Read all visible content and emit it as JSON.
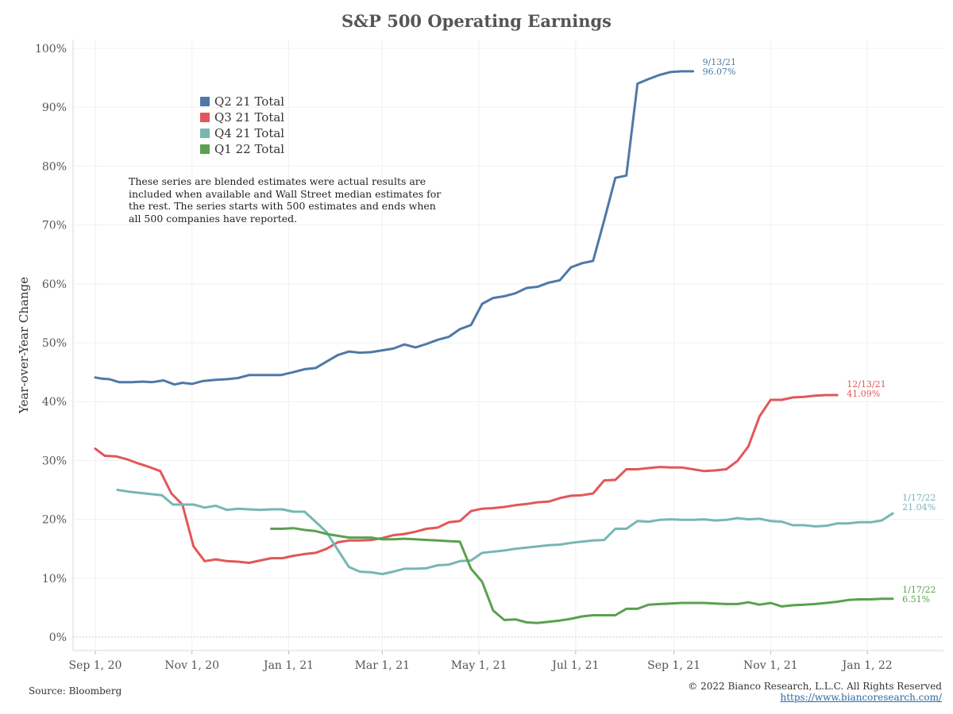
{
  "chart_data": {
    "type": "line",
    "title": "S&P 500 Operating Earnings",
    "ylabel": "Year-over-Year Change",
    "xlabel": "",
    "ylim": [
      0,
      100
    ],
    "xlim": [
      "2020-08-18",
      "2022-02-18"
    ],
    "yticks": [
      0,
      10,
      20,
      30,
      40,
      50,
      60,
      70,
      80,
      90,
      100
    ],
    "ytick_labels": [
      "0%",
      "10%",
      "20%",
      "30%",
      "40%",
      "50%",
      "60%",
      "70%",
      "80%",
      "90%",
      "100%"
    ],
    "xticks": [
      "2020-09-01",
      "2020-11-01",
      "2021-01-01",
      "2021-03-01",
      "2021-05-01",
      "2021-07-01",
      "2021-09-01",
      "2021-11-01",
      "2022-01-01"
    ],
    "xtick_labels": [
      "Sep 1, 20",
      "Nov 1, 20",
      "Jan 1, 21",
      "Mar 1, 21",
      "May 1, 21",
      "Jul 1, 21",
      "Sep 1, 21",
      "Nov 1, 21",
      "Jan 1, 22"
    ],
    "grid": true,
    "legend_position": "top-left",
    "annotation": "These series are blended estimates were actual results are included when available and Wall Street median estimates for the rest. The series starts with 500 estimates and ends when all 500 companies have reported.",
    "series": [
      {
        "name": "Q2 21 Total",
        "color": "#4e79a7",
        "end_label": [
          "9/13/21",
          "96.07%"
        ],
        "points": [
          [
            "2020-09-01",
            44.1
          ],
          [
            "2020-09-05",
            43.9
          ],
          [
            "2020-09-10",
            43.8
          ],
          [
            "2020-09-16",
            43.3
          ],
          [
            "2020-09-24",
            43.3
          ],
          [
            "2020-10-01",
            43.4
          ],
          [
            "2020-10-07",
            43.3
          ],
          [
            "2020-10-14",
            43.6
          ],
          [
            "2020-10-21",
            42.9
          ],
          [
            "2020-10-26",
            43.2
          ],
          [
            "2020-11-01",
            43.0
          ],
          [
            "2020-11-08",
            43.5
          ],
          [
            "2020-11-16",
            43.7
          ],
          [
            "2020-11-23",
            43.8
          ],
          [
            "2020-11-30",
            44.0
          ],
          [
            "2020-12-07",
            44.5
          ],
          [
            "2020-12-16",
            44.5
          ],
          [
            "2020-12-27",
            44.5
          ],
          [
            "2021-01-04",
            45.0
          ],
          [
            "2021-01-11",
            45.5
          ],
          [
            "2021-01-18",
            45.7
          ],
          [
            "2021-01-25",
            46.8
          ],
          [
            "2021-02-01",
            47.9
          ],
          [
            "2021-02-08",
            48.5
          ],
          [
            "2021-02-15",
            48.3
          ],
          [
            "2021-02-22",
            48.4
          ],
          [
            "2021-03-01",
            48.7
          ],
          [
            "2021-03-08",
            49.0
          ],
          [
            "2021-03-15",
            49.7
          ],
          [
            "2021-03-22",
            49.2
          ],
          [
            "2021-03-29",
            49.8
          ],
          [
            "2021-04-05",
            50.5
          ],
          [
            "2021-04-12",
            51.0
          ],
          [
            "2021-04-19",
            52.3
          ],
          [
            "2021-04-26",
            53.0
          ],
          [
            "2021-05-03",
            56.6
          ],
          [
            "2021-05-10",
            57.6
          ],
          [
            "2021-05-17",
            57.9
          ],
          [
            "2021-05-24",
            58.4
          ],
          [
            "2021-05-31",
            59.3
          ],
          [
            "2021-06-07",
            59.5
          ],
          [
            "2021-06-14",
            60.2
          ],
          [
            "2021-06-21",
            60.6
          ],
          [
            "2021-06-28",
            62.8
          ],
          [
            "2021-07-05",
            63.5
          ],
          [
            "2021-07-12",
            63.9
          ],
          [
            "2021-07-19",
            70.8
          ],
          [
            "2021-07-26",
            78.0
          ],
          [
            "2021-08-02",
            78.4
          ],
          [
            "2021-08-09",
            94.0
          ],
          [
            "2021-08-16",
            94.8
          ],
          [
            "2021-08-23",
            95.5
          ],
          [
            "2021-08-30",
            96.0
          ],
          [
            "2021-09-06",
            96.1
          ],
          [
            "2021-09-13",
            96.1
          ]
        ]
      },
      {
        "name": "Q3 21 Total",
        "color": "#e15759",
        "end_label": [
          "12/13/21",
          "41.09%"
        ],
        "points": [
          [
            "2020-09-01",
            32.0
          ],
          [
            "2020-09-07",
            30.8
          ],
          [
            "2020-09-14",
            30.7
          ],
          [
            "2020-09-21",
            30.2
          ],
          [
            "2020-09-28",
            29.5
          ],
          [
            "2020-10-05",
            28.9
          ],
          [
            "2020-10-12",
            28.2
          ],
          [
            "2020-10-19",
            24.4
          ],
          [
            "2020-10-26",
            22.5
          ],
          [
            "2020-11-02",
            15.4
          ],
          [
            "2020-11-09",
            12.9
          ],
          [
            "2020-11-16",
            13.2
          ],
          [
            "2020-11-23",
            12.9
          ],
          [
            "2020-11-30",
            12.8
          ],
          [
            "2020-12-07",
            12.6
          ],
          [
            "2020-12-14",
            13.0
          ],
          [
            "2020-12-21",
            13.4
          ],
          [
            "2020-12-28",
            13.4
          ],
          [
            "2021-01-04",
            13.8
          ],
          [
            "2021-01-11",
            14.1
          ],
          [
            "2021-01-18",
            14.3
          ],
          [
            "2021-01-25",
            15.0
          ],
          [
            "2021-02-01",
            16.1
          ],
          [
            "2021-02-08",
            16.4
          ],
          [
            "2021-02-15",
            16.4
          ],
          [
            "2021-02-22",
            16.5
          ],
          [
            "2021-03-01",
            16.8
          ],
          [
            "2021-03-08",
            17.3
          ],
          [
            "2021-03-15",
            17.5
          ],
          [
            "2021-03-22",
            17.9
          ],
          [
            "2021-03-29",
            18.4
          ],
          [
            "2021-04-05",
            18.6
          ],
          [
            "2021-04-12",
            19.5
          ],
          [
            "2021-04-19",
            19.7
          ],
          [
            "2021-04-26",
            21.4
          ],
          [
            "2021-05-03",
            21.8
          ],
          [
            "2021-05-10",
            21.9
          ],
          [
            "2021-05-17",
            22.1
          ],
          [
            "2021-05-24",
            22.4
          ],
          [
            "2021-05-31",
            22.6
          ],
          [
            "2021-06-07",
            22.9
          ],
          [
            "2021-06-14",
            23.0
          ],
          [
            "2021-06-21",
            23.6
          ],
          [
            "2021-06-28",
            24.0
          ],
          [
            "2021-07-05",
            24.1
          ],
          [
            "2021-07-12",
            24.4
          ],
          [
            "2021-07-19",
            26.6
          ],
          [
            "2021-07-26",
            26.7
          ],
          [
            "2021-08-02",
            28.5
          ],
          [
            "2021-08-09",
            28.5
          ],
          [
            "2021-08-16",
            28.7
          ],
          [
            "2021-08-23",
            28.9
          ],
          [
            "2021-08-30",
            28.8
          ],
          [
            "2021-09-06",
            28.8
          ],
          [
            "2021-09-13",
            28.5
          ],
          [
            "2021-09-20",
            28.2
          ],
          [
            "2021-09-27",
            28.3
          ],
          [
            "2021-10-04",
            28.5
          ],
          [
            "2021-10-11",
            29.9
          ],
          [
            "2021-10-18",
            32.4
          ],
          [
            "2021-10-25",
            37.5
          ],
          [
            "2021-11-01",
            40.3
          ],
          [
            "2021-11-08",
            40.3
          ],
          [
            "2021-11-15",
            40.7
          ],
          [
            "2021-11-22",
            40.8
          ],
          [
            "2021-11-29",
            41.0
          ],
          [
            "2021-12-06",
            41.1
          ],
          [
            "2021-12-13",
            41.1
          ]
        ]
      },
      {
        "name": "Q4 21 Total",
        "color": "#76b7b2",
        "end_label": [
          "1/17/22",
          "21.04%"
        ],
        "points": [
          [
            "2020-09-15",
            25.0
          ],
          [
            "2020-09-22",
            24.7
          ],
          [
            "2020-09-29",
            24.5
          ],
          [
            "2020-10-06",
            24.3
          ],
          [
            "2020-10-13",
            24.1
          ],
          [
            "2020-10-20",
            22.5
          ],
          [
            "2020-10-27",
            22.5
          ],
          [
            "2020-11-02",
            22.5
          ],
          [
            "2020-11-09",
            22.0
          ],
          [
            "2020-11-16",
            22.3
          ],
          [
            "2020-11-23",
            21.6
          ],
          [
            "2020-11-30",
            21.8
          ],
          [
            "2020-12-07",
            21.7
          ],
          [
            "2020-12-14",
            21.6
          ],
          [
            "2020-12-21",
            21.7
          ],
          [
            "2020-12-28",
            21.7
          ],
          [
            "2021-01-04",
            21.3
          ],
          [
            "2021-01-11",
            21.3
          ],
          [
            "2021-01-18",
            19.6
          ],
          [
            "2021-01-25",
            17.8
          ],
          [
            "2021-02-01",
            14.8
          ],
          [
            "2021-02-08",
            11.9
          ],
          [
            "2021-02-15",
            11.1
          ],
          [
            "2021-02-22",
            11.0
          ],
          [
            "2021-03-01",
            10.7
          ],
          [
            "2021-03-08",
            11.1
          ],
          [
            "2021-03-15",
            11.6
          ],
          [
            "2021-03-22",
            11.6
          ],
          [
            "2021-03-29",
            11.7
          ],
          [
            "2021-04-05",
            12.2
          ],
          [
            "2021-04-12",
            12.3
          ],
          [
            "2021-04-19",
            12.9
          ],
          [
            "2021-04-26",
            13.0
          ],
          [
            "2021-05-03",
            14.3
          ],
          [
            "2021-05-10",
            14.5
          ],
          [
            "2021-05-17",
            14.7
          ],
          [
            "2021-05-24",
            15.0
          ],
          [
            "2021-05-31",
            15.2
          ],
          [
            "2021-06-07",
            15.4
          ],
          [
            "2021-06-14",
            15.6
          ],
          [
            "2021-06-21",
            15.7
          ],
          [
            "2021-06-28",
            16.0
          ],
          [
            "2021-07-05",
            16.2
          ],
          [
            "2021-07-12",
            16.4
          ],
          [
            "2021-07-19",
            16.5
          ],
          [
            "2021-07-26",
            18.4
          ],
          [
            "2021-08-02",
            18.4
          ],
          [
            "2021-08-09",
            19.7
          ],
          [
            "2021-08-16",
            19.6
          ],
          [
            "2021-08-23",
            19.9
          ],
          [
            "2021-08-30",
            20.0
          ],
          [
            "2021-09-06",
            19.9
          ],
          [
            "2021-09-13",
            19.9
          ],
          [
            "2021-09-20",
            20.0
          ],
          [
            "2021-09-27",
            19.8
          ],
          [
            "2021-10-04",
            19.9
          ],
          [
            "2021-10-11",
            20.2
          ],
          [
            "2021-10-18",
            20.0
          ],
          [
            "2021-10-25",
            20.1
          ],
          [
            "2021-11-01",
            19.7
          ],
          [
            "2021-11-08",
            19.6
          ],
          [
            "2021-11-15",
            19.0
          ],
          [
            "2021-11-22",
            19.0
          ],
          [
            "2021-11-29",
            18.8
          ],
          [
            "2021-12-06",
            18.9
          ],
          [
            "2021-12-13",
            19.3
          ],
          [
            "2021-12-20",
            19.3
          ],
          [
            "2021-12-27",
            19.5
          ],
          [
            "2022-01-03",
            19.5
          ],
          [
            "2022-01-10",
            19.8
          ],
          [
            "2022-01-17",
            21.0
          ]
        ]
      },
      {
        "name": "Q1 22 Total",
        "color": "#59a14f",
        "end_label": [
          "1/17/22",
          "6.51%"
        ],
        "points": [
          [
            "2020-12-21",
            18.4
          ],
          [
            "2020-12-28",
            18.4
          ],
          [
            "2021-01-04",
            18.5
          ],
          [
            "2021-01-11",
            18.2
          ],
          [
            "2021-01-18",
            18.0
          ],
          [
            "2021-01-25",
            17.5
          ],
          [
            "2021-02-01",
            17.2
          ],
          [
            "2021-02-08",
            16.9
          ],
          [
            "2021-02-15",
            16.9
          ],
          [
            "2021-02-22",
            16.9
          ],
          [
            "2021-03-01",
            16.6
          ],
          [
            "2021-03-08",
            16.6
          ],
          [
            "2021-03-15",
            16.7
          ],
          [
            "2021-03-22",
            16.6
          ],
          [
            "2021-03-29",
            16.5
          ],
          [
            "2021-04-05",
            16.4
          ],
          [
            "2021-04-12",
            16.3
          ],
          [
            "2021-04-19",
            16.2
          ],
          [
            "2021-04-26",
            11.6
          ],
          [
            "2021-05-03",
            9.4
          ],
          [
            "2021-05-10",
            4.5
          ],
          [
            "2021-05-17",
            2.9
          ],
          [
            "2021-05-24",
            3.0
          ],
          [
            "2021-05-31",
            2.5
          ],
          [
            "2021-06-07",
            2.4
          ],
          [
            "2021-06-14",
            2.6
          ],
          [
            "2021-06-21",
            2.8
          ],
          [
            "2021-06-28",
            3.1
          ],
          [
            "2021-07-05",
            3.5
          ],
          [
            "2021-07-12",
            3.7
          ],
          [
            "2021-07-19",
            3.7
          ],
          [
            "2021-07-26",
            3.7
          ],
          [
            "2021-08-02",
            4.8
          ],
          [
            "2021-08-09",
            4.8
          ],
          [
            "2021-08-16",
            5.5
          ],
          [
            "2021-08-23",
            5.6
          ],
          [
            "2021-08-30",
            5.7
          ],
          [
            "2021-09-06",
            5.8
          ],
          [
            "2021-09-13",
            5.8
          ],
          [
            "2021-09-20",
            5.8
          ],
          [
            "2021-09-27",
            5.7
          ],
          [
            "2021-10-04",
            5.6
          ],
          [
            "2021-10-11",
            5.6
          ],
          [
            "2021-10-18",
            5.9
          ],
          [
            "2021-10-25",
            5.5
          ],
          [
            "2021-11-01",
            5.8
          ],
          [
            "2021-11-08",
            5.2
          ],
          [
            "2021-11-15",
            5.4
          ],
          [
            "2021-11-22",
            5.5
          ],
          [
            "2021-11-29",
            5.6
          ],
          [
            "2021-12-06",
            5.8
          ],
          [
            "2021-12-13",
            6.0
          ],
          [
            "2021-12-20",
            6.3
          ],
          [
            "2021-12-27",
            6.4
          ],
          [
            "2022-01-03",
            6.4
          ],
          [
            "2022-01-10",
            6.5
          ],
          [
            "2022-01-17",
            6.5
          ]
        ]
      }
    ]
  },
  "footer": {
    "source": "Source: Bloomberg",
    "copyright": "© 2022 Bianco Research, L.L.C. All Rights Reserved",
    "link": "https://www.biancoresearch.com/"
  }
}
